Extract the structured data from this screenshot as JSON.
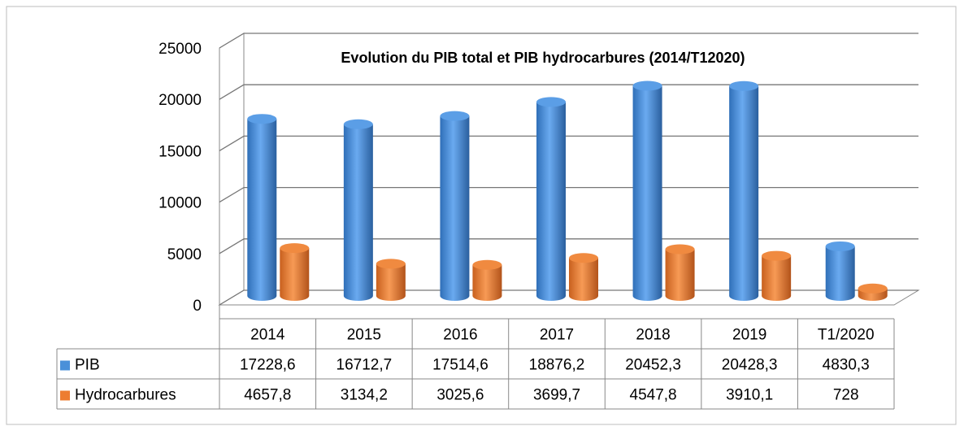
{
  "chart_data": {
    "type": "bar3d",
    "title": "Evolution du PIB total et PIB hydrocarbures (2014/T12020)",
    "categories": [
      "2014",
      "2015",
      "2016",
      "2017",
      "2018",
      "2019",
      "T1/2020"
    ],
    "series": [
      {
        "name": "PIB",
        "color": "#4a90d9",
        "values": [
          17228.6,
          16712.7,
          17514.6,
          18876.2,
          20452.3,
          20428.3,
          4830.3
        ],
        "value_labels": [
          "17228,6",
          "16712,7",
          "17514,6",
          "18876,2",
          "20452,3",
          "20428,3",
          "4830,3"
        ]
      },
      {
        "name": "Hydrocarbures",
        "color": "#ed7d31",
        "values": [
          4657.8,
          3134.2,
          3025.6,
          3699.7,
          4547.8,
          3910.1,
          728
        ],
        "value_labels": [
          "4657,8",
          "3134,2",
          "3025,6",
          "3699,7",
          "4547,8",
          "3910,1",
          "728"
        ]
      }
    ],
    "ylim": [
      0,
      25000
    ],
    "yticks": [
      0,
      5000,
      10000,
      15000,
      20000,
      25000
    ],
    "grid": true
  }
}
